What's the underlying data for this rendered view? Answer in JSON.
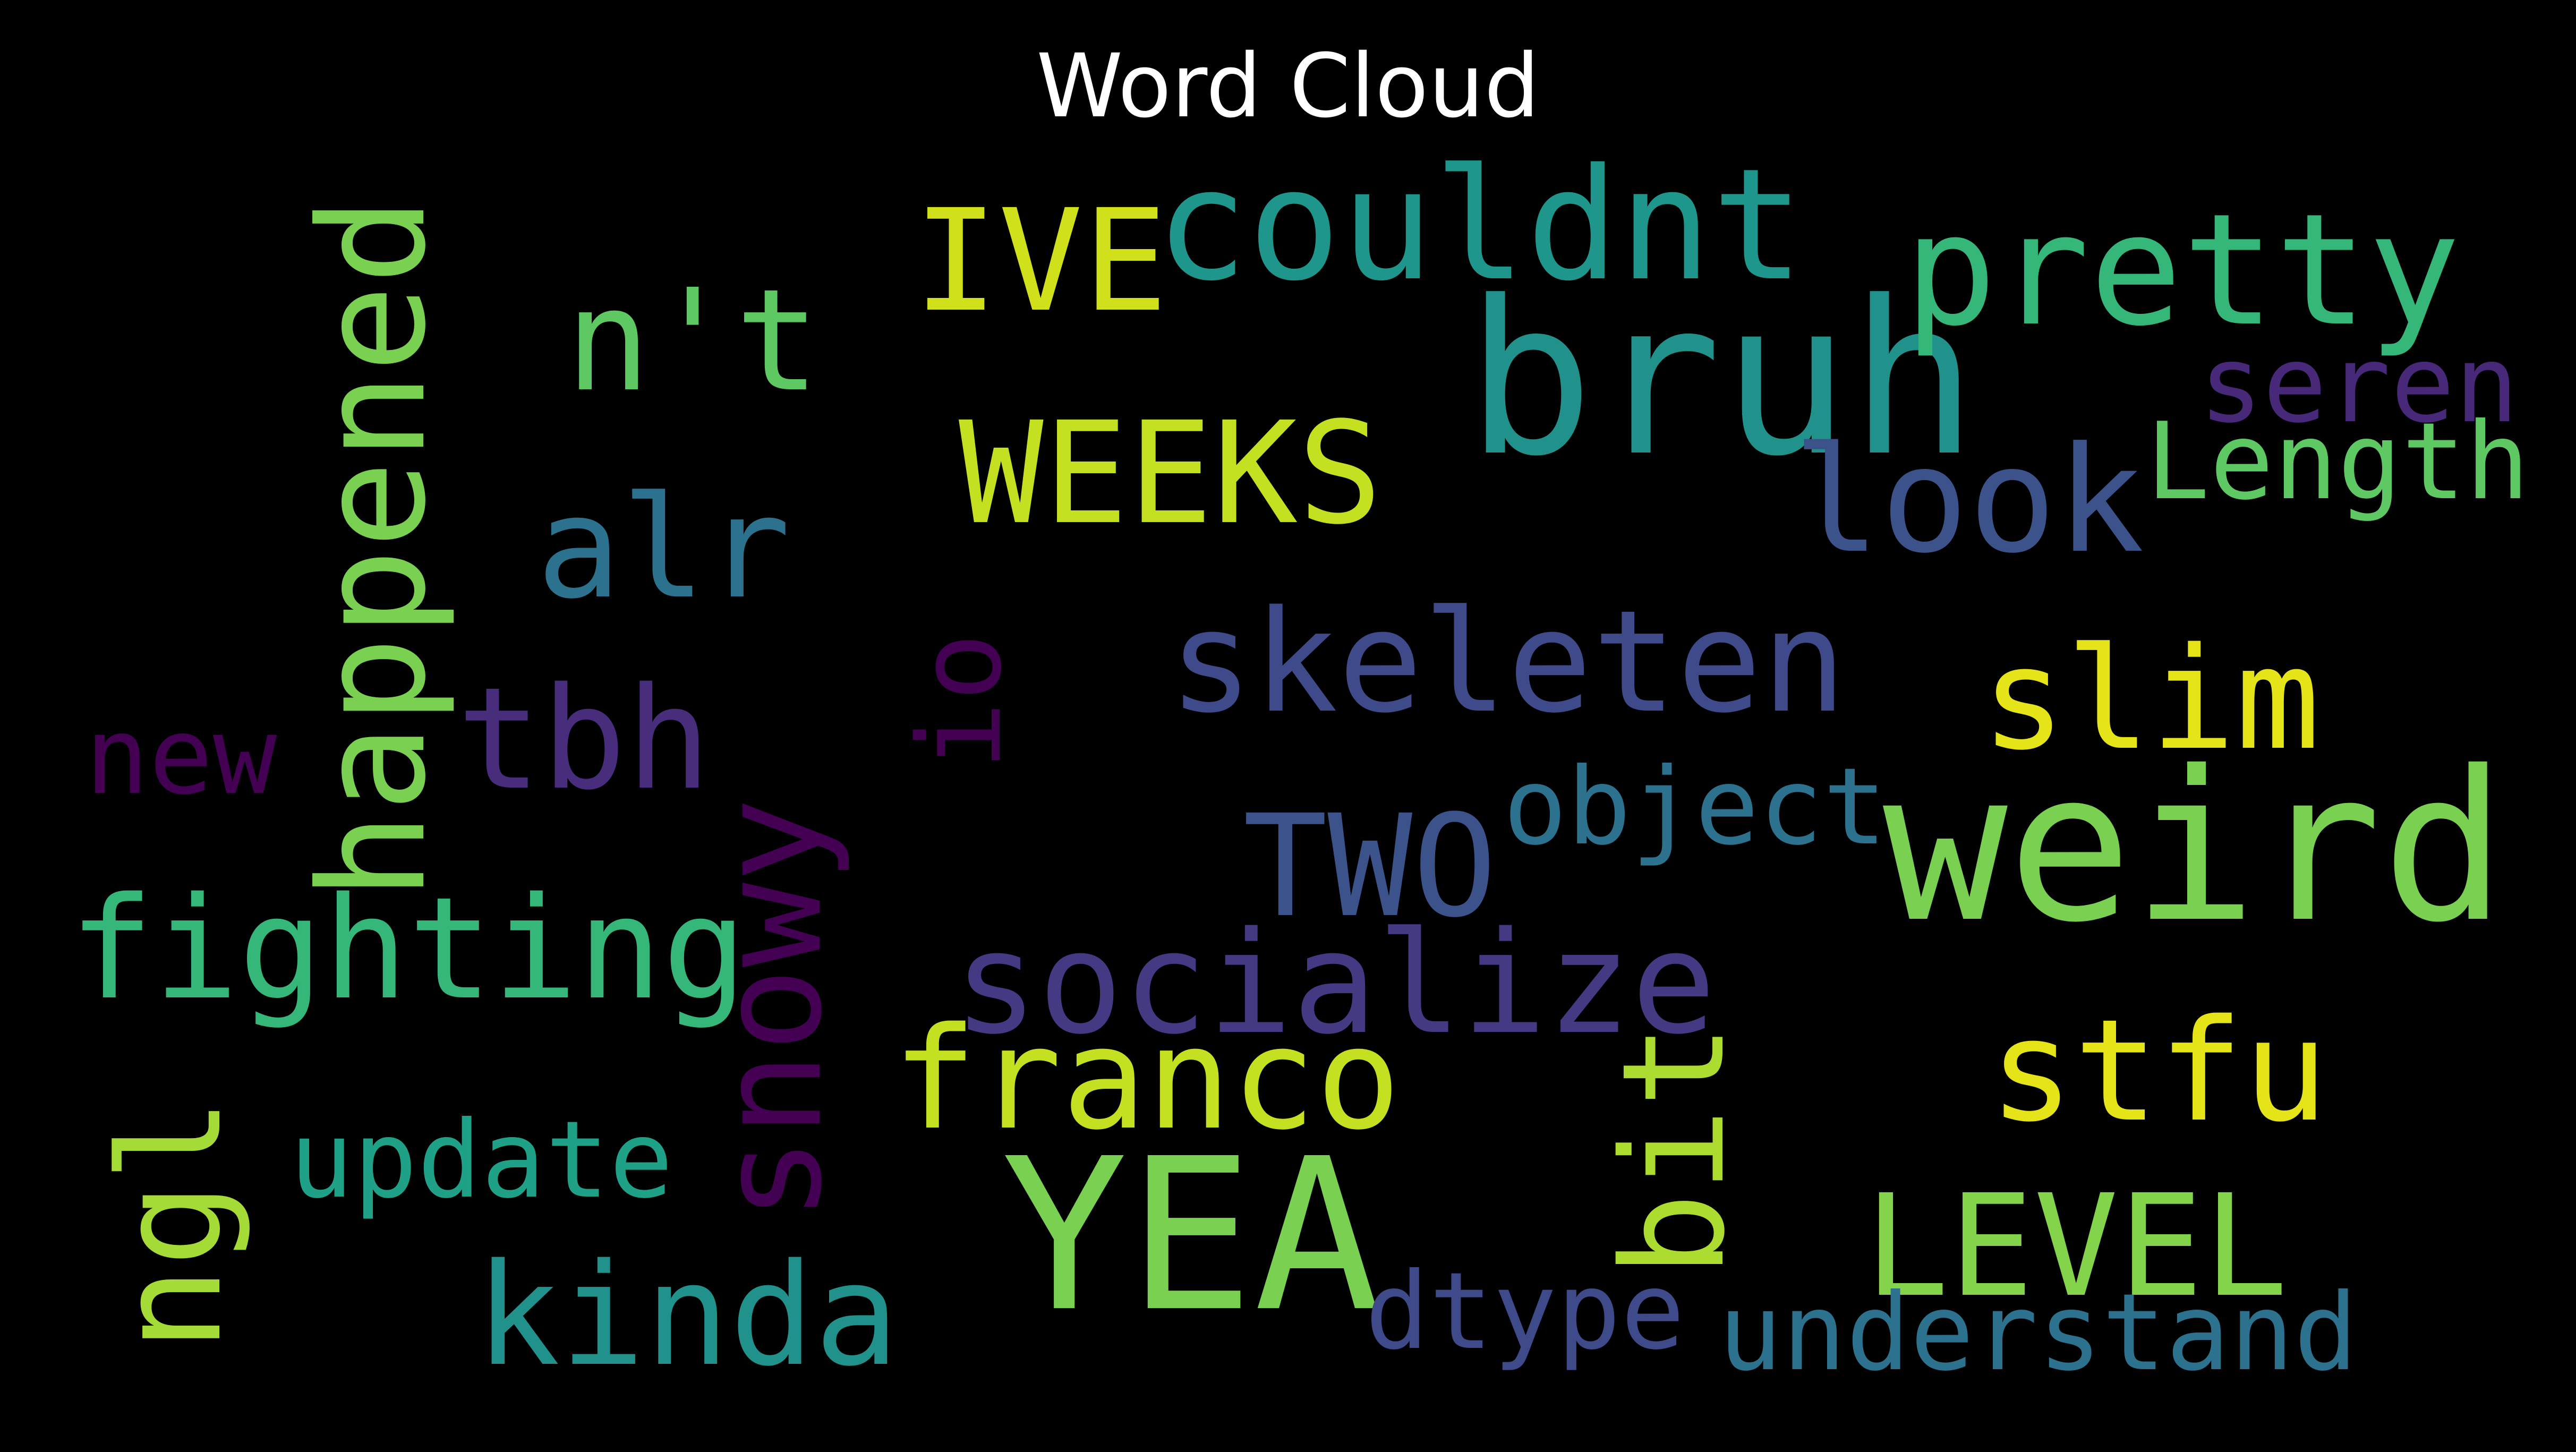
{
  "title": "Word Cloud",
  "words": [
    {
      "id": "bruh",
      "text": "bruh",
      "color": "#21918c"
    },
    {
      "id": "weird",
      "text": "weird",
      "color": "#7ad151"
    },
    {
      "id": "yea",
      "text": "YEA",
      "color": "#7ad151"
    },
    {
      "id": "happened",
      "text": "happened",
      "color": "#7ad151"
    },
    {
      "id": "couldnt",
      "text": "couldnt",
      "color": "#1f968b"
    },
    {
      "id": "pretty",
      "text": "pretty",
      "color": "#35b779"
    },
    {
      "id": "weeks",
      "text": "WEEKS",
      "color": "#c5e021"
    },
    {
      "id": "ive",
      "text": "IVE",
      "color": "#d0e11c"
    },
    {
      "id": "nt",
      "text": "n't",
      "color": "#5ec962"
    },
    {
      "id": "alr",
      "text": "alr",
      "color": "#2c728e"
    },
    {
      "id": "look",
      "text": "look",
      "color": "#3b528b"
    },
    {
      "id": "seren",
      "text": "seren",
      "color": "#482878"
    },
    {
      "id": "length",
      "text": "Length",
      "color": "#5ec962"
    },
    {
      "id": "skeleten",
      "text": "skeleten",
      "color": "#3e4a89"
    },
    {
      "id": "io",
      "text": "io",
      "color": "#440154"
    },
    {
      "id": "slim",
      "text": "slim",
      "color": "#e5e419"
    },
    {
      "id": "tbh",
      "text": "tbh",
      "color": "#472d7b"
    },
    {
      "id": "new",
      "text": "new",
      "color": "#440154"
    },
    {
      "id": "object",
      "text": "object",
      "color": "#2c728e"
    },
    {
      "id": "two",
      "text": "TWO",
      "color": "#3b528b"
    },
    {
      "id": "fighting",
      "text": "fighting",
      "color": "#35b779"
    },
    {
      "id": "snowy",
      "text": "snowy",
      "color": "#440154"
    },
    {
      "id": "socialize",
      "text": "socialize",
      "color": "#443983"
    },
    {
      "id": "franco",
      "text": "franco",
      "color": "#c5e021"
    },
    {
      "id": "stfu",
      "text": "stfu",
      "color": "#e5e419"
    },
    {
      "id": "bit",
      "text": "bit",
      "color": "#addc30"
    },
    {
      "id": "ngl",
      "text": "ngl",
      "color": "#a5db36"
    },
    {
      "id": "update",
      "text": "update",
      "color": "#1fa187"
    },
    {
      "id": "level",
      "text": "LEVEL",
      "color": "#84d44b"
    },
    {
      "id": "kinda",
      "text": "kinda",
      "color": "#21918c"
    },
    {
      "id": "dtype",
      "text": "dtype",
      "color": "#3e4a89"
    },
    {
      "id": "understand",
      "text": "understand",
      "color": "#2c728e"
    }
  ]
}
